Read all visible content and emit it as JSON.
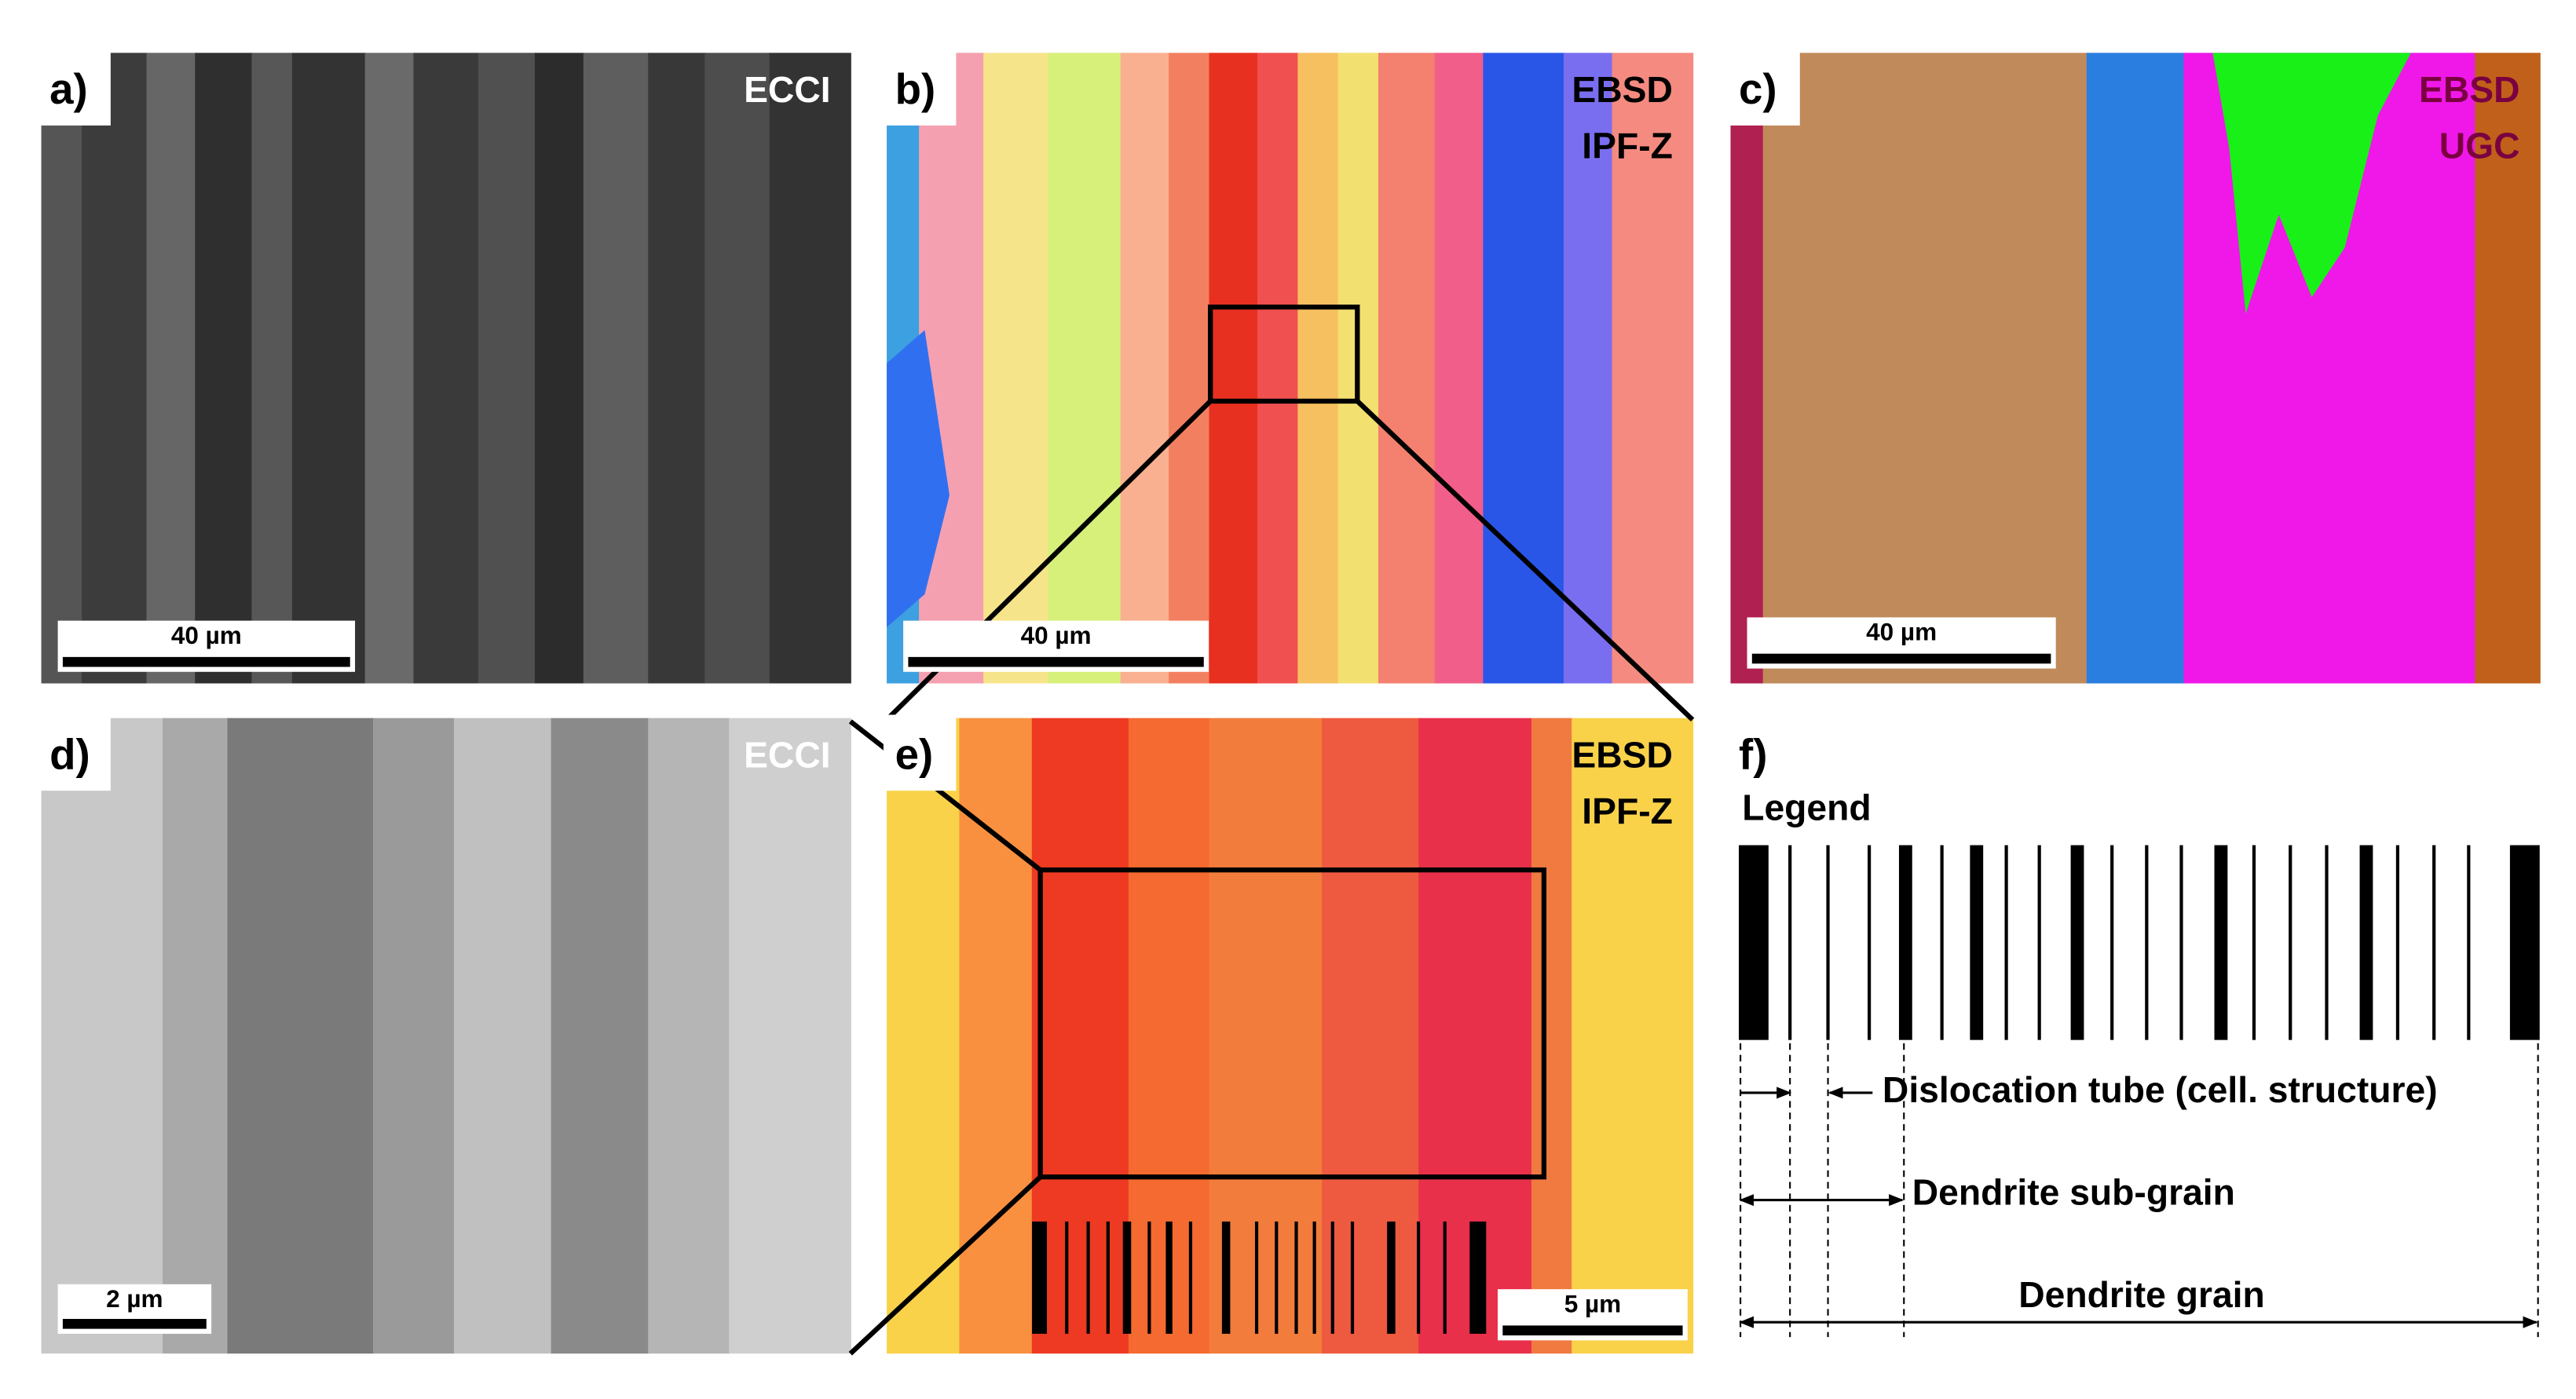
{
  "panels": [
    {
      "label": "a)",
      "tags": [
        "ECCI"
      ],
      "scale_bar": "40 µm"
    },
    {
      "label": "b)",
      "tags": [
        "EBSD",
        "IPF-Z"
      ],
      "scale_bar": "40 µm"
    },
    {
      "label": "c)",
      "tags": [
        "EBSD",
        "UGC"
      ],
      "scale_bar": "40 µm"
    },
    {
      "label": "d)",
      "tags": [
        "ECCI"
      ],
      "scale_bar": "2 µm"
    },
    {
      "label": "e)",
      "tags": [
        "EBSD",
        "IPF-Z"
      ],
      "scale_bar": "5 µm"
    },
    {
      "label": "f)"
    }
  ],
  "legend": {
    "title": "Legend",
    "items": [
      "Dislocation tube (cell. structure)",
      "Dendrite sub-grain",
      "Dendrite grain"
    ]
  }
}
